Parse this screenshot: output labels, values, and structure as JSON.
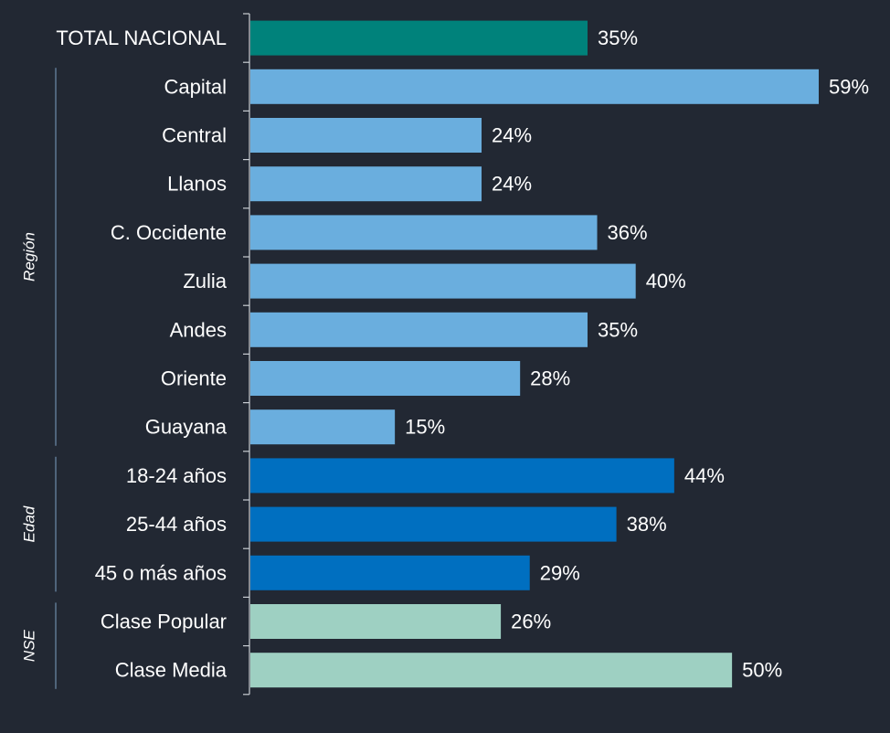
{
  "chart_data": {
    "type": "bar",
    "orientation": "horizontal",
    "categories": [
      "TOTAL NACIONAL",
      "Capital",
      "Central",
      "Llanos",
      "C. Occidente",
      "Zulia",
      "Andes",
      "Oriente",
      "Guayana",
      "18-24 años",
      "25-44 años",
      "45 o más años",
      "Clase Popular",
      "Clase Media"
    ],
    "values": [
      35,
      59,
      24,
      24,
      36,
      40,
      35,
      28,
      15,
      44,
      38,
      29,
      26,
      50
    ],
    "value_labels": [
      "35%",
      "59%",
      "24%",
      "24%",
      "36%",
      "40%",
      "35%",
      "28%",
      "15%",
      "44%",
      "38%",
      "29%",
      "26%",
      "50%"
    ],
    "groups": [
      {
        "label": "",
        "start": 0,
        "end": 0,
        "color": "#00827B"
      },
      {
        "label": "Región",
        "start": 1,
        "end": 8,
        "color": "#6AAEDE"
      },
      {
        "label": "Edad",
        "start": 9,
        "end": 11,
        "color": "#006FC0"
      },
      {
        "label": "NSE",
        "start": 12,
        "end": 13,
        "color": "#9ED0C2"
      }
    ],
    "xlim": [
      0,
      59
    ],
    "grid": false,
    "legend": "none",
    "title": "",
    "xlabel": "",
    "ylabel": ""
  },
  "colors": {
    "background": "#222833",
    "text": "#FFFFFF",
    "axis": "#C9CDD3",
    "group_line": "#5E7893"
  }
}
